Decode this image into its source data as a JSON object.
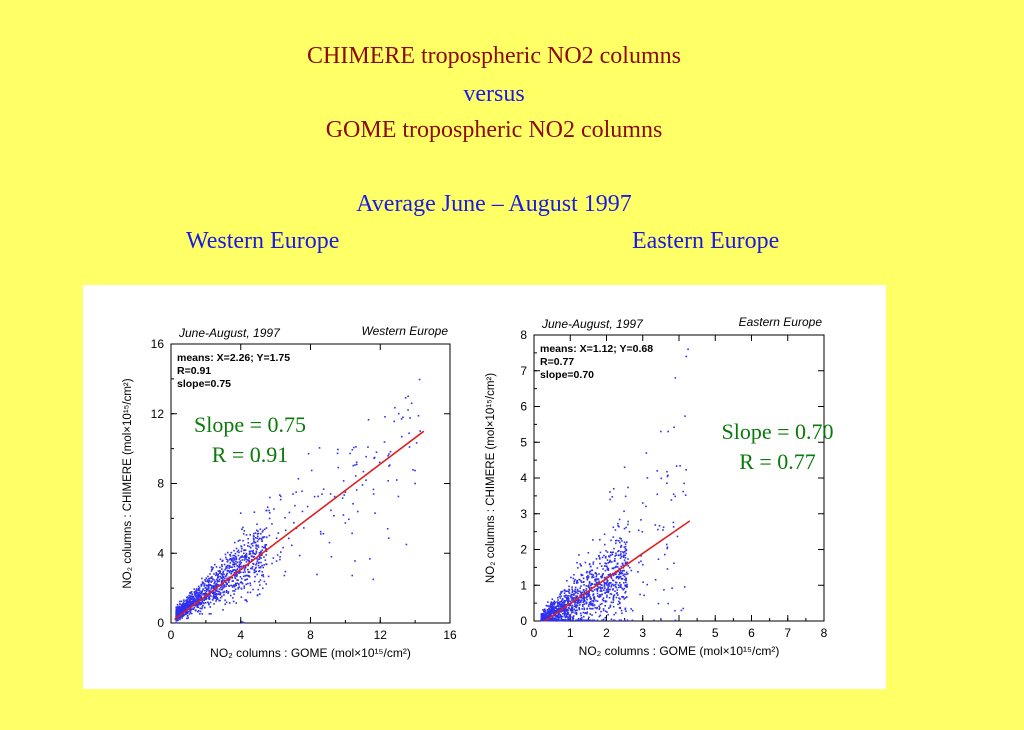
{
  "title": {
    "line1": "CHIMERE tropospheric NO2 columns",
    "line2": "versus",
    "line3": "GOME tropospheric NO2 columns",
    "period": "Average June – August 1997",
    "west_label": "Western Europe",
    "east_label": "Eastern Europe"
  },
  "annotations": {
    "west_slope": "Slope = 0.75",
    "west_r": "R = 0.91",
    "east_slope": "Slope = 0.70",
    "east_r": "R = 0.77"
  },
  "colors": {
    "background": "#ffff66",
    "title_red": "#8b0a0a",
    "title_blue": "#1a1ae6",
    "annotation_green": "#0a7a0a",
    "points": "#3030f0",
    "fit_line": "#e02020"
  },
  "chart_data": [
    {
      "type": "scatter",
      "period_label": "June-August, 1997",
      "region_label": "Western Europe",
      "stats": [
        "means: X=2.26; Y=1.75",
        "R=0.91",
        "slope=0.75"
      ],
      "xlabel": "NO₂ columns : GOME (mol×10¹⁵/cm²)",
      "ylabel": "NO₂ columns : CHIMERE (mol×10¹⁵/cm²)",
      "xlim": [
        0,
        16
      ],
      "ylim": [
        0,
        16
      ],
      "xticks": [
        0,
        4,
        8,
        12,
        16
      ],
      "yticks": [
        0,
        4,
        8,
        12,
        16
      ],
      "mean_x": 2.26,
      "mean_y": 1.75,
      "slope": 0.75,
      "r": 0.91,
      "fit_line": [
        [
          0.2,
          0.2
        ],
        [
          14.5,
          11.0
        ]
      ],
      "points_summary": "dense cluster for x in 0.3–5, y in 0.3–4; sparse points up to x≈14, y≈13"
    },
    {
      "type": "scatter",
      "period_label": "June-August, 1997",
      "region_label": "Eastern Europe",
      "stats": [
        "means: X=1.12; Y=0.68",
        "R=0.77",
        "slope=0.70"
      ],
      "xlabel": "NO₂ columns : GOME (mol×10¹⁵/cm²)",
      "ylabel": "NO₂ columns : CHIMERE (mol×10¹⁵/cm²)",
      "xlim": [
        0,
        8
      ],
      "ylim": [
        0,
        8
      ],
      "xticks": [
        0,
        1,
        2,
        3,
        4,
        5,
        6,
        7,
        8
      ],
      "yticks": [
        0,
        1,
        2,
        3,
        4,
        5,
        6,
        7,
        8
      ],
      "mean_x": 1.12,
      "mean_y": 0.68,
      "slope": 0.7,
      "r": 0.77,
      "fit_line": [
        [
          0.3,
          0.0
        ],
        [
          4.3,
          2.8
        ]
      ],
      "points_summary": "dense cluster for x in 0.2–2.5, y in 0–1.5; sparse points up to x≈4.2, y≈7.6"
    }
  ]
}
